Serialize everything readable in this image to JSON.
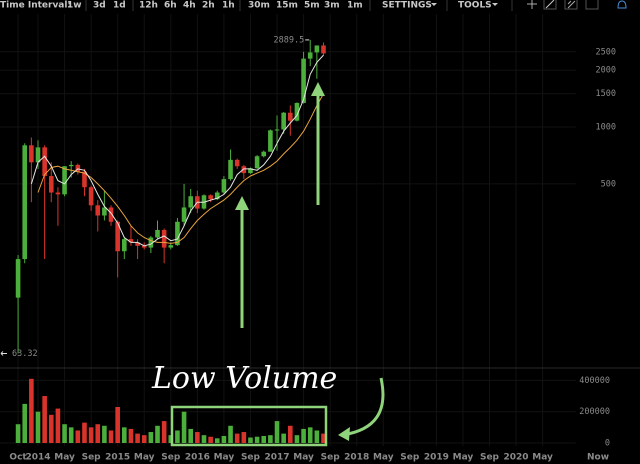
{
  "toolbar": {
    "label": "Time Interval:",
    "intervals": [
      "1w",
      "3d",
      "1d",
      "12h",
      "6h",
      "4h",
      "2h",
      "1h",
      "30m",
      "15m",
      "5m",
      "3m",
      "1m"
    ],
    "active": "1w",
    "menus": [
      "SETTINGS",
      "TOOLS"
    ]
  },
  "chart_data": {
    "type": "candlestick",
    "annotation": "Low Volume",
    "max_label": 2889.5,
    "min_label": 63.32,
    "now_label": "Now",
    "x": [
      "2013-10",
      "2013-11",
      "2013-12",
      "2014-01",
      "2014-02",
      "2014-03",
      "2014-04",
      "2014-05",
      "2014-06",
      "2014-07",
      "2014-08",
      "2014-09",
      "2014-10",
      "2014-11",
      "2014-12",
      "2015-01",
      "2015-02",
      "2015-03",
      "2015-04",
      "2015-05",
      "2015-06",
      "2015-07",
      "2015-08",
      "2015-09",
      "2015-10",
      "2015-11",
      "2015-12",
      "2016-01",
      "2016-02",
      "2016-03",
      "2016-04",
      "2016-05",
      "2016-06",
      "2016-07",
      "2016-08",
      "2016-09",
      "2016-10",
      "2016-11",
      "2016-12",
      "2017-01",
      "2017-02",
      "2017-03",
      "2017-04",
      "2017-05",
      "2017-06",
      "2017-07",
      "2017-08"
    ],
    "open": [
      125,
      200,
      800,
      650,
      780,
      550,
      450,
      440,
      620,
      630,
      580,
      480,
      385,
      340,
      375,
      315,
      220,
      255,
      245,
      235,
      230,
      260,
      285,
      230,
      237,
      315,
      375,
      430,
      370,
      435,
      415,
      450,
      530,
      670,
      620,
      570,
      605,
      700,
      740,
      960,
      970,
      1190,
      1080,
      1340,
      2300,
      2480,
      2700
    ],
    "high": [
      210,
      820,
      880,
      850,
      800,
      650,
      480,
      620,
      660,
      640,
      600,
      490,
      410,
      460,
      385,
      320,
      260,
      300,
      255,
      245,
      265,
      320,
      290,
      245,
      330,
      500,
      470,
      460,
      440,
      440,
      460,
      550,
      760,
      680,
      630,
      610,
      710,
      750,
      970,
      1150,
      1200,
      1300,
      1350,
      2500,
      2889.5,
      2700,
      2800
    ],
    "low": [
      63.32,
      190,
      400,
      600,
      200,
      400,
      300,
      430,
      540,
      560,
      430,
      360,
      280,
      320,
      300,
      160,
      200,
      235,
      200,
      225,
      215,
      255,
      190,
      225,
      235,
      300,
      350,
      350,
      365,
      400,
      410,
      440,
      520,
      600,
      530,
      565,
      600,
      690,
      740,
      750,
      920,
      900,
      1070,
      1330,
      2100,
      1800,
      2400
    ],
    "close": [
      200,
      800,
      650,
      780,
      550,
      450,
      440,
      620,
      630,
      580,
      480,
      385,
      340,
      375,
      315,
      220,
      255,
      245,
      235,
      230,
      260,
      285,
      230,
      237,
      315,
      375,
      430,
      370,
      435,
      415,
      450,
      530,
      670,
      620,
      570,
      605,
      700,
      740,
      960,
      970,
      1190,
      1080,
      1340,
      2300,
      2480,
      2700,
      2450
    ],
    "volume": [
      120000,
      250000,
      410000,
      200000,
      300000,
      180000,
      220000,
      120000,
      100000,
      80000,
      130000,
      100000,
      120000,
      110000,
      80000,
      230000,
      100000,
      90000,
      60000,
      50000,
      70000,
      110000,
      140000,
      50000,
      80000,
      200000,
      90000,
      70000,
      50000,
      40000,
      30000,
      45000,
      110000,
      60000,
      70000,
      35000,
      40000,
      45000,
      50000,
      140000,
      60000,
      110000,
      50000,
      90000,
      100000,
      80000,
      60000
    ],
    "moving_averages": [
      {
        "color": "#e8a33c",
        "values": [
          null,
          null,
          null,
          450,
          560,
          610,
          620,
          600,
          590,
          580,
          570,
          540,
          500,
          460,
          420,
          380,
          340,
          300,
          275,
          260,
          250,
          245,
          245,
          242,
          245,
          260,
          290,
          320,
          345,
          370,
          390,
          410,
          440,
          480,
          520,
          550,
          570,
          590,
          620,
          660,
          720,
          780,
          850,
          950,
          1100,
          1300,
          1500
        ]
      },
      {
        "color": "#e6e6e6",
        "values": [
          null,
          null,
          500,
          650,
          700,
          620,
          520,
          500,
          560,
          600,
          590,
          520,
          440,
          380,
          350,
          310,
          260,
          245,
          245,
          235,
          240,
          255,
          265,
          250,
          255,
          300,
          360,
          400,
          400,
          410,
          420,
          440,
          480,
          560,
          600,
          600,
          590,
          630,
          700,
          820,
          950,
          1050,
          1150,
          1400,
          1900,
          2200,
          2400
        ]
      }
    ],
    "up_color": "#4caf3c",
    "down_color": "#d9342b",
    "log_scale": true,
    "ylim": [
      55,
      4160
    ],
    "yticks": [
      500,
      1000,
      1500,
      2000,
      2500
    ],
    "y2lim": [
      0,
      460000
    ],
    "y2ticks": [
      0,
      200000,
      400000
    ],
    "xlim": [
      "2013-08",
      "2020-10"
    ],
    "xticks": [
      {
        "value": "2013-10",
        "label": "Oct"
      },
      {
        "value": "2014-01",
        "label": "2014"
      },
      {
        "value": "2014-05",
        "label": "May"
      },
      {
        "value": "2014-09",
        "label": "Sep"
      },
      {
        "value": "2015-01",
        "label": "2015"
      },
      {
        "value": "2015-05",
        "label": "May"
      },
      {
        "value": "2015-09",
        "label": "Sep"
      },
      {
        "value": "2016-01",
        "label": "2016"
      },
      {
        "value": "2016-05",
        "label": "May"
      },
      {
        "value": "2016-09",
        "label": "Sep"
      },
      {
        "value": "2017-01",
        "label": "2017"
      },
      {
        "value": "2017-05",
        "label": "May"
      },
      {
        "value": "2017-09",
        "label": "Sep"
      },
      {
        "value": "2018-01",
        "label": "2018"
      },
      {
        "value": "2018-05",
        "label": "May"
      },
      {
        "value": "2018-09",
        "label": "Sep"
      },
      {
        "value": "2019-01",
        "label": "2019"
      },
      {
        "value": "2019-05",
        "label": "May"
      },
      {
        "value": "2019-09",
        "label": "Sep"
      },
      {
        "value": "2020-01",
        "label": "2020"
      },
      {
        "value": "2020-05",
        "label": "May"
      }
    ]
  }
}
